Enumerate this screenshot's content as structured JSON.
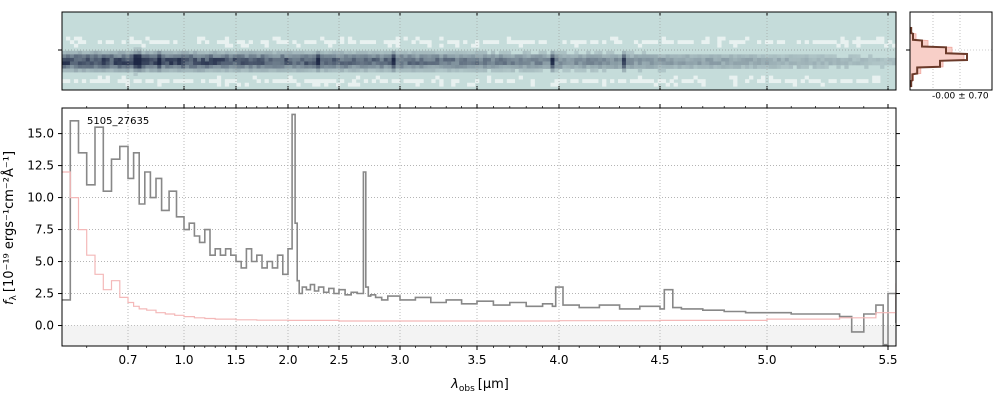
{
  "chart_data": [
    {
      "panel": "2d-spectrum",
      "type": "heatmap",
      "description_colors": {
        "background": "#c5dcda",
        "trace_dark": "#1d2745",
        "trace_light": "#ffffff"
      },
      "y_ticks": [
        "0"
      ],
      "columns": 210,
      "rows": 22,
      "trace_peak_columns": [
        18,
        19,
        24,
        64,
        83,
        123,
        141
      ]
    },
    {
      "panel": "profile",
      "type": "line",
      "label": "-0.00 ± 0.70",
      "offset_y": [
        -3,
        -2,
        -1,
        0,
        1,
        2,
        3,
        4,
        5
      ],
      "profile_data": [
        0.02,
        0.05,
        0.2,
        0.6,
        0.95,
        0.5,
        0.12,
        0.04,
        0.02
      ],
      "profile_model": [
        0.02,
        0.1,
        0.3,
        0.7,
        0.9,
        0.55,
        0.18,
        0.06,
        0.02
      ],
      "colors": {
        "data": "#6b3a2a",
        "model_fill": "#f8cfc8"
      }
    },
    {
      "panel": "1d-spectrum",
      "type": "line",
      "annotation": "5105_27635",
      "xlabel_main": "λ",
      "xlabel_sub": "obs",
      "xlabel_unit": "[μm]",
      "ylabel_main": "f",
      "ylabel_sub": "λ",
      "ylabel_unit": "[10⁻¹⁹ ergs⁻¹cm⁻²Å⁻¹]",
      "xscale": "reciprocal-like (resolution)",
      "x_ticks": [
        0.7,
        1.0,
        1.5,
        2.0,
        2.5,
        3.0,
        3.5,
        4.0,
        4.5,
        5.0,
        5.5
      ],
      "x_tick_labels": [
        "0.7",
        "1.0",
        "1.5",
        "2.0",
        "2.5",
        "3.0",
        "3.5",
        "4.0",
        "4.5",
        "5.0",
        "5.5"
      ],
      "y_ticks": [
        0.0,
        2.5,
        5.0,
        7.5,
        10.0,
        12.5,
        15.0
      ],
      "y_tick_labels": [
        "0.0",
        "2.5",
        "5.0",
        "7.5",
        "10.0",
        "12.5",
        "15.0"
      ],
      "ylim": [
        -1.6,
        17.0
      ],
      "grid": true,
      "series": [
        {
          "role": "flux",
          "color": "#888888",
          "x": [
            0.54,
            0.56,
            0.58,
            0.6,
            0.62,
            0.64,
            0.66,
            0.68,
            0.7,
            0.73,
            0.76,
            0.79,
            0.82,
            0.85,
            0.88,
            0.92,
            0.96,
            1.0,
            1.05,
            1.1,
            1.15,
            1.2,
            1.25,
            1.3,
            1.35,
            1.4,
            1.45,
            1.5,
            1.55,
            1.6,
            1.65,
            1.7,
            1.75,
            1.8,
            1.85,
            1.9,
            1.95,
            2.0,
            2.04,
            2.07,
            2.09,
            2.11,
            2.14,
            2.18,
            2.22,
            2.26,
            2.3,
            2.35,
            2.4,
            2.45,
            2.5,
            2.55,
            2.6,
            2.65,
            2.7,
            2.72,
            2.74,
            2.76,
            2.8,
            2.85,
            2.9,
            3.0,
            3.1,
            3.2,
            3.3,
            3.4,
            3.5,
            3.6,
            3.7,
            3.8,
            3.9,
            3.96,
            3.98,
            4.02,
            4.1,
            4.2,
            4.3,
            4.4,
            4.5,
            4.52,
            4.56,
            4.6,
            4.7,
            4.8,
            4.9,
            5.0,
            5.1,
            5.2,
            5.3,
            5.35,
            5.4,
            5.45,
            5.48,
            5.5,
            5.52
          ],
          "values": [
            2.0,
            16.0,
            13.5,
            11.0,
            15.5,
            10.5,
            13.0,
            14.0,
            11.5,
            13.5,
            9.5,
            12.0,
            10.0,
            11.5,
            9.0,
            10.5,
            8.5,
            7.5,
            8.0,
            7.0,
            6.5,
            7.5,
            5.5,
            6.0,
            5.5,
            6.0,
            5.5,
            5.0,
            4.5,
            6.0,
            5.0,
            5.5,
            4.5,
            5.0,
            4.5,
            5.5,
            4.0,
            6.0,
            16.5,
            8.0,
            3.5,
            2.5,
            3.0,
            2.8,
            3.2,
            2.7,
            3.0,
            2.6,
            2.9,
            2.5,
            2.8,
            2.4,
            2.6,
            2.5,
            12.0,
            3.0,
            2.3,
            2.4,
            2.2,
            2.0,
            2.3,
            2.0,
            2.2,
            1.8,
            2.0,
            1.7,
            1.9,
            1.6,
            1.8,
            1.5,
            1.7,
            1.5,
            3.0,
            1.6,
            1.4,
            1.6,
            1.3,
            1.5,
            1.3,
            2.8,
            1.4,
            1.3,
            1.2,
            1.1,
            1.0,
            1.0,
            0.9,
            0.9,
            0.7,
            -0.5,
            0.9,
            1.6,
            -1.5,
            2.5,
            0.2
          ]
        },
        {
          "role": "uncertainty",
          "color": "#f4b8b8",
          "x": [
            0.54,
            0.56,
            0.58,
            0.6,
            0.62,
            0.64,
            0.66,
            0.68,
            0.7,
            0.73,
            0.76,
            0.8,
            0.85,
            0.9,
            0.95,
            1.0,
            1.1,
            1.2,
            1.3,
            1.5,
            1.7,
            2.0,
            2.5,
            3.0,
            3.5,
            4.0,
            4.5,
            5.0,
            5.3,
            5.45,
            5.52
          ],
          "values": [
            12.0,
            10.0,
            7.5,
            5.5,
            4.0,
            2.8,
            3.5,
            2.2,
            1.8,
            1.5,
            1.3,
            1.2,
            1.0,
            0.9,
            0.8,
            0.7,
            0.6,
            0.55,
            0.5,
            0.45,
            0.42,
            0.4,
            0.35,
            0.35,
            0.35,
            0.38,
            0.4,
            0.5,
            0.6,
            1.0,
            3.3
          ]
        }
      ]
    }
  ]
}
